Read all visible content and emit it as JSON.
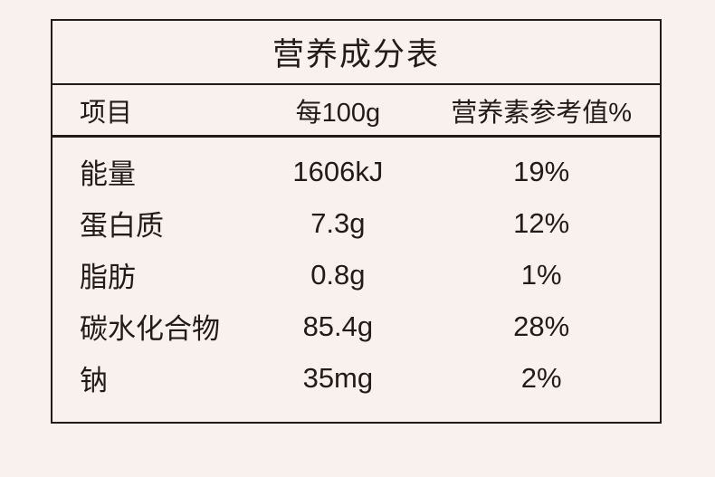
{
  "title": "营养成分表",
  "header": {
    "item": "项目",
    "per_100g": "每100g",
    "nrv": "营养素参考值%"
  },
  "rows": [
    {
      "item": "能量",
      "amount": "1606kJ",
      "nrv": "19%"
    },
    {
      "item": "蛋白质",
      "amount": "7.3g",
      "nrv": "12%"
    },
    {
      "item": "脂肪",
      "amount": "0.8g",
      "nrv": "1%"
    },
    {
      "item": "碳水化合物",
      "amount": "85.4g",
      "nrv": "28%"
    },
    {
      "item": "钠",
      "amount": "35mg",
      "nrv": "2%"
    }
  ],
  "colors": {
    "bg": "#f8f1ed",
    "ink": "#211c18"
  }
}
